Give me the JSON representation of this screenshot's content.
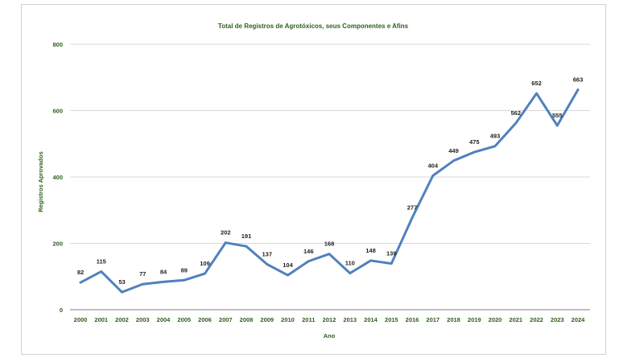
{
  "chart_data": {
    "type": "line",
    "title": "Total de Registros de Agrotóxicos, seus Componentes e Afins",
    "xlabel": "Ano",
    "ylabel": "Registros Aprovados",
    "ylim": [
      0,
      800
    ],
    "yticks": [
      0,
      200,
      400,
      600,
      800
    ],
    "grid": true,
    "legend": "none",
    "x": [
      "2000",
      "2001",
      "2002",
      "2003",
      "2004",
      "2005",
      "2006",
      "2007",
      "2008",
      "2009",
      "2010",
      "2011",
      "2012",
      "2013",
      "2014",
      "2015",
      "2016",
      "2017",
      "2018",
      "2019",
      "2020",
      "2021",
      "2022",
      "2023",
      "2024"
    ],
    "series": [
      {
        "values": [
          82,
          115,
          53,
          77,
          84,
          89,
          109,
          202,
          191,
          137,
          104,
          146,
          168,
          110,
          148,
          139,
          277,
          404,
          449,
          475,
          493,
          562,
          652,
          555,
          663
        ],
        "labels": [
          "82",
          "115",
          "53",
          "77",
          "84",
          "89",
          "109",
          "202",
          "191",
          "137",
          "104",
          "146",
          "168",
          "110",
          "148",
          "139",
          "277",
          "404",
          "449",
          "475",
          "493",
          "562",
          "652",
          "555",
          "663"
        ]
      }
    ],
    "colors": {
      "line": "#4f81bd",
      "title": "#2e5f1e",
      "grid": "#d9d9d9",
      "axis": "#7f7f7f"
    }
  }
}
